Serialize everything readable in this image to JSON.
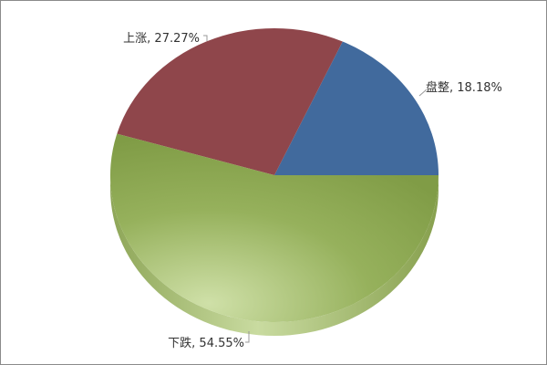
{
  "chart_data": {
    "type": "pie",
    "title": "",
    "slices": [
      {
        "name": "盘整",
        "value": 18.18,
        "label": "盘整, 18.18%",
        "color": "#416a9d"
      },
      {
        "name": "上涨",
        "value": 27.27,
        "label": "上涨, 27.27%",
        "color": "#8f464b"
      },
      {
        "name": "下跌",
        "value": 54.55,
        "label": "下跌, 54.55%",
        "color": "#84a04a"
      }
    ],
    "start_angle_deg": 0,
    "direction": "counter-clockwise",
    "style": "3d-tilted",
    "legend": "none"
  }
}
